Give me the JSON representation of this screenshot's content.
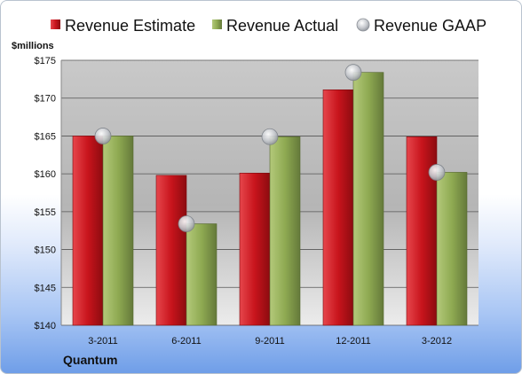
{
  "chart_data": {
    "type": "bar",
    "ylabel": "$millions",
    "footer_label": "Quantum",
    "categories": [
      "3-2011",
      "6-2011",
      "9-2011",
      "12-2011",
      "3-2012"
    ],
    "series": [
      {
        "name": "Revenue Estimate",
        "type": "bar",
        "color": "#c8141c",
        "values": [
          165.0,
          159.8,
          160.1,
          171.1,
          164.9
        ]
      },
      {
        "name": "Revenue Actual",
        "type": "bar",
        "color": "#8faa52",
        "values": [
          165.0,
          153.4,
          164.9,
          173.4,
          160.2
        ]
      },
      {
        "name": "Revenue GAAP",
        "type": "marker",
        "color": "#b9bdc4",
        "values": [
          165.0,
          153.4,
          164.9,
          173.4,
          160.2
        ]
      }
    ],
    "y_ticks": [
      "$140",
      "$145",
      "$150",
      "$155",
      "$160",
      "$165",
      "$170",
      "$175"
    ],
    "ylim": [
      140,
      175
    ],
    "grid": true,
    "legend_position": "top"
  }
}
